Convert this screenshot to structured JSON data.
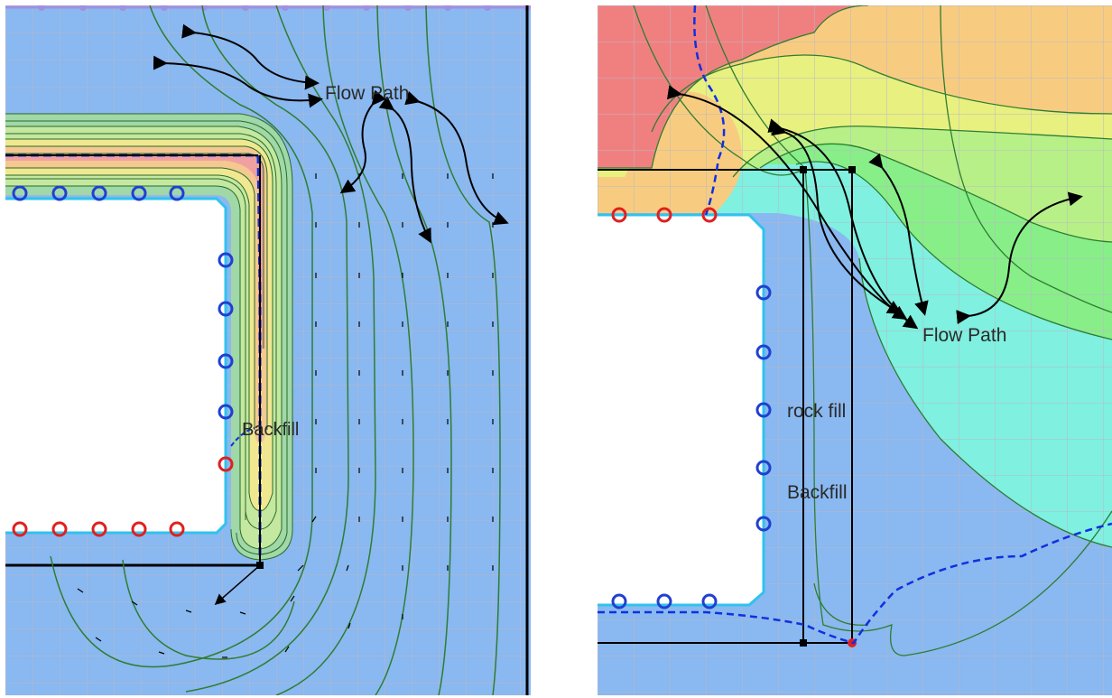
{
  "left_panel": {
    "flow_path_label": "Flow Path",
    "backfill_label": "Backfill"
  },
  "right_panel": {
    "flow_path_label": "Flow Path",
    "rock_fill_label": "rock fill",
    "backfill_label": "Backfill"
  },
  "colors": {
    "soil": "#8ab8f0",
    "mesh": "#b8b8c8",
    "contour": "#2e7d32",
    "phreatic": "#1030e0",
    "boundary": "#2fc3ee",
    "seep_node": "#e02020",
    "head_node": "#2040d0",
    "zone_red": "#f08080",
    "zone_orange": "#f8cc80",
    "zone_yellow": "#e8f080",
    "zone_lightgreen": "#b8f088",
    "zone_green": "#88ee88",
    "zone_cyan": "#80f0e0"
  }
}
